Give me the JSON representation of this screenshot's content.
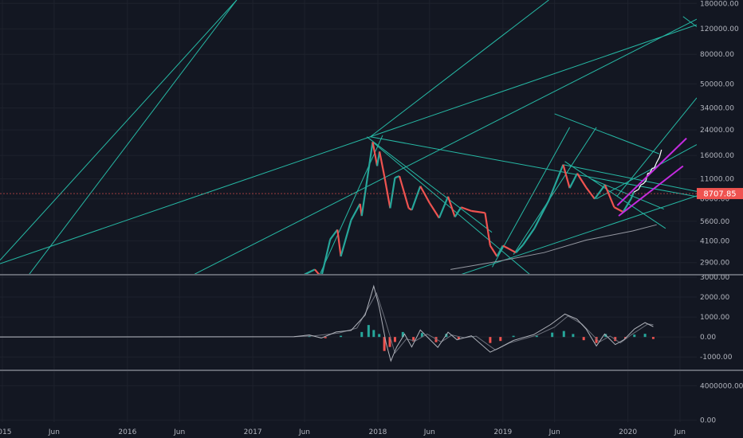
{
  "colors": {
    "background": "#131722",
    "grid": "#1e222d",
    "axis_text": "#b2b5be",
    "up": "#26a69a",
    "down": "#ef5350",
    "trendline": "#26b9a5",
    "channel": "#c42be0",
    "price_badge": "#ef5350",
    "ma_line": "#9598a1",
    "white_line": "#ffffff",
    "macd_line": "#b0b3bb",
    "signal_line": "#6b6f7a",
    "separator": "#b2b5be"
  },
  "chart_data": [
    {
      "type": "line",
      "panel": "price",
      "scale": "log",
      "ylim": [
        2420,
        190000
      ],
      "xlim": [
        "2014-12-25",
        "2020-07-20"
      ],
      "y_ticks": [
        "180000.00",
        "120000.00",
        "80000.00",
        "50000.00",
        "34000.00",
        "24000.00",
        "16000.00",
        "11000.00",
        "8000.00",
        "5600.00",
        "4100.00",
        "2900.00"
      ],
      "last_price": "8707.85",
      "x_ticks": [
        "2015",
        "Jun",
        "2016",
        "Jun",
        "2017",
        "Jun",
        "2018",
        "Jun",
        "2019",
        "Jun",
        "2020",
        "Jun"
      ],
      "price_path": [
        [
          "2017-06-01",
          2400
        ],
        [
          "2017-07-01",
          2600
        ],
        [
          "2017-07-20",
          2300
        ],
        [
          "2017-08-15",
          4200
        ],
        [
          "2017-09-05",
          4900
        ],
        [
          "2017-09-15",
          3200
        ],
        [
          "2017-10-15",
          5700
        ],
        [
          "2017-11-10",
          7400
        ],
        [
          "2017-11-15",
          6100
        ],
        [
          "2017-12-01",
          11000
        ],
        [
          "2017-12-17",
          19800
        ],
        [
          "2017-12-30",
          13500
        ],
        [
          "2018-01-06",
          17000
        ],
        [
          "2018-01-20",
          11500
        ],
        [
          "2018-02-06",
          6900
        ],
        [
          "2018-02-20",
          11200
        ],
        [
          "2018-03-05",
          11500
        ],
        [
          "2018-04-01",
          6900
        ],
        [
          "2018-04-10",
          6700
        ],
        [
          "2018-05-05",
          9800
        ],
        [
          "2018-06-01",
          7500
        ],
        [
          "2018-06-29",
          5900
        ],
        [
          "2018-07-25",
          8300
        ],
        [
          "2018-08-14",
          6000
        ],
        [
          "2018-09-01",
          7000
        ],
        [
          "2018-10-01",
          6600
        ],
        [
          "2018-11-10",
          6400
        ],
        [
          "2018-11-25",
          3800
        ],
        [
          "2018-12-15",
          3200
        ],
        [
          "2019-01-01",
          3800
        ],
        [
          "2019-02-08",
          3400
        ],
        [
          "2019-03-01",
          3850
        ],
        [
          "2019-04-03",
          5000
        ],
        [
          "2019-05-15",
          7800
        ],
        [
          "2019-06-26",
          13800
        ],
        [
          "2019-07-15",
          9500
        ],
        [
          "2019-08-06",
          12000
        ],
        [
          "2019-09-01",
          9600
        ],
        [
          "2019-09-26",
          8000
        ],
        [
          "2019-10-26",
          10000
        ],
        [
          "2019-11-22",
          7000
        ],
        [
          "2019-12-18",
          6500
        ],
        [
          "2020-01-10",
          8000
        ],
        [
          "2020-01-18",
          8900
        ]
      ],
      "white_path": [
        [
          "2020-01-18",
          8900
        ],
        [
          "2020-02-01",
          9300
        ],
        [
          "2020-02-08",
          10000
        ],
        [
          "2020-02-15",
          10200
        ],
        [
          "2020-02-22",
          10600
        ],
        [
          "2020-02-28",
          12000
        ],
        [
          "2020-03-05",
          12100
        ],
        [
          "2020-03-12",
          13000
        ],
        [
          "2020-03-18",
          13100
        ],
        [
          "2020-03-25",
          14300
        ],
        [
          "2020-04-02",
          15500
        ],
        [
          "2020-04-08",
          17500
        ]
      ],
      "ma_path": [
        [
          "2018-08-01",
          2600
        ],
        [
          "2018-12-15",
          2950
        ],
        [
          "2019-05-01",
          3400
        ],
        [
          "2019-09-01",
          4150
        ],
        [
          "2020-01-15",
          4800
        ],
        [
          "2020-03-25",
          5300
        ]
      ],
      "trendlines": [
        [
          [
            "2014-12-25",
            3010
          ],
          [
            "2016-11-15",
            190000
          ]
        ],
        [
          [
            "2014-12-25",
            1300
          ],
          [
            "2016-11-15",
            190000
          ]
        ],
        [
          [
            "2014-12-25",
            2850
          ],
          [
            "2020-07-20",
            128000
          ]
        ],
        [
          [
            "2015-03-01",
            600
          ],
          [
            "2020-07-20",
            140000
          ]
        ],
        [
          [
            "2017-12-10",
            21500
          ],
          [
            "2019-05-15",
            190000
          ]
        ],
        [
          [
            "2017-06-01",
            1400
          ],
          [
            "2018-01-15",
            22000
          ]
        ],
        [
          [
            "2017-12-10",
            21500
          ],
          [
            "2020-07-20",
            8300
          ]
        ],
        [
          [
            "2017-11-30",
            21500
          ],
          [
            "2018-11-30",
            4700
          ]
        ],
        [
          [
            "2017-12-20",
            19500
          ],
          [
            "2019-07-01",
            1500
          ]
        ],
        [
          [
            "2018-12-01",
            2700
          ],
          [
            "2019-07-15",
            25000
          ]
        ],
        [
          [
            "2019-02-01",
            3300
          ],
          [
            "2019-10-01",
            25000
          ]
        ],
        [
          [
            "2018-09-01",
            2400
          ],
          [
            "2020-07-20",
            8400
          ]
        ],
        [
          [
            "2019-06-01",
            31000
          ],
          [
            "2020-04-01",
            16400
          ]
        ],
        [
          [
            "2019-07-01",
            14500
          ],
          [
            "2020-04-20",
            5000
          ]
        ],
        [
          [
            "2019-06-26",
            13800
          ],
          [
            "2020-07-20",
            9000
          ]
        ],
        [
          [
            "2019-12-01",
            8400
          ],
          [
            "2020-07-20",
            40000
          ]
        ],
        [
          [
            "2019-10-01",
            8000
          ],
          [
            "2020-07-20",
            19000
          ]
        ],
        [
          [
            "2019-09-15",
            11000
          ],
          [
            "2020-04-15",
            6800
          ]
        ],
        [
          [
            "2020-06-10",
            146000
          ],
          [
            "2020-07-20",
            124000
          ]
        ]
      ],
      "channel": [
        [
          [
            "2019-12-01",
            7200
          ],
          [
            "2020-06-20",
            21000
          ]
        ],
        [
          [
            "2019-12-05",
            6100
          ],
          [
            "2020-06-10",
            13500
          ]
        ]
      ]
    },
    {
      "type": "line",
      "panel": "macd",
      "ylim": [
        -1630,
        3080
      ],
      "y_ticks": [
        "3000.00",
        "2000.00",
        "1000.00",
        "0.00",
        "-1000.00"
      ],
      "macd_line": [
        [
          "2014-12-25",
          0
        ],
        [
          "2017-05-01",
          15
        ],
        [
          "2017-06-15",
          100
        ],
        [
          "2017-07-20",
          -50
        ],
        [
          "2017-09-01",
          250
        ],
        [
          "2017-10-15",
          330
        ],
        [
          "2017-11-25",
          1100
        ],
        [
          "2017-12-20",
          2550
        ],
        [
          "2018-01-05",
          1500
        ],
        [
          "2018-01-25",
          -300
        ],
        [
          "2018-02-08",
          -1200
        ],
        [
          "2018-02-25",
          -500
        ],
        [
          "2018-03-20",
          150
        ],
        [
          "2018-04-10",
          -500
        ],
        [
          "2018-05-05",
          350
        ],
        [
          "2018-06-25",
          -520
        ],
        [
          "2018-07-25",
          240
        ],
        [
          "2018-08-20",
          -140
        ],
        [
          "2018-10-01",
          60
        ],
        [
          "2018-11-25",
          -760
        ],
        [
          "2018-12-20",
          -560
        ],
        [
          "2019-02-01",
          -170
        ],
        [
          "2019-04-01",
          120
        ],
        [
          "2019-05-20",
          620
        ],
        [
          "2019-07-01",
          1150
        ],
        [
          "2019-08-05",
          900
        ],
        [
          "2019-09-01",
          400
        ],
        [
          "2019-10-01",
          -450
        ],
        [
          "2019-10-25",
          150
        ],
        [
          "2019-11-25",
          -380
        ],
        [
          "2019-12-20",
          -140
        ],
        [
          "2020-01-20",
          400
        ],
        [
          "2020-02-20",
          720
        ],
        [
          "2020-03-15",
          520
        ]
      ],
      "signal_line": [
        [
          "2014-12-25",
          0
        ],
        [
          "2017-05-01",
          10
        ],
        [
          "2017-07-01",
          60
        ],
        [
          "2017-09-10",
          200
        ],
        [
          "2017-11-01",
          450
        ],
        [
          "2017-12-28",
          2200
        ],
        [
          "2018-01-20",
          1000
        ],
        [
          "2018-02-20",
          -800
        ],
        [
          "2018-03-25",
          -100
        ],
        [
          "2018-04-20",
          -200
        ],
        [
          "2018-05-25",
          150
        ],
        [
          "2018-07-05",
          -250
        ],
        [
          "2018-08-05",
          100
        ],
        [
          "2018-09-10",
          -40
        ],
        [
          "2018-10-15",
          40
        ],
        [
          "2018-12-10",
          -650
        ],
        [
          "2019-01-20",
          -300
        ],
        [
          "2019-04-10",
          90
        ],
        [
          "2019-06-01",
          500
        ],
        [
          "2019-07-10",
          1050
        ],
        [
          "2019-08-20",
          650
        ],
        [
          "2019-10-10",
          -250
        ],
        [
          "2019-11-10",
          50
        ],
        [
          "2019-12-10",
          -300
        ],
        [
          "2020-01-10",
          100
        ],
        [
          "2020-02-28",
          650
        ],
        [
          "2020-03-15",
          620
        ]
      ],
      "histogram": [
        [
          "2017-06-15",
          40
        ],
        [
          "2017-08-01",
          -60
        ],
        [
          "2017-09-15",
          60
        ],
        [
          "2017-11-15",
          250
        ],
        [
          "2017-12-05",
          600
        ],
        [
          "2017-12-20",
          350
        ],
        [
          "2018-01-05",
          150
        ],
        [
          "2018-01-20",
          -700
        ],
        [
          "2018-02-05",
          -500
        ],
        [
          "2018-02-20",
          -250
        ],
        [
          "2018-03-15",
          250
        ],
        [
          "2018-04-15",
          -220
        ],
        [
          "2018-05-10",
          200
        ],
        [
          "2018-06-20",
          -260
        ],
        [
          "2018-07-20",
          160
        ],
        [
          "2018-08-25",
          -100
        ],
        [
          "2018-10-05",
          40
        ],
        [
          "2018-11-25",
          -300
        ],
        [
          "2018-12-25",
          -200
        ],
        [
          "2019-02-01",
          60
        ],
        [
          "2019-04-10",
          60
        ],
        [
          "2019-05-25",
          220
        ],
        [
          "2019-06-28",
          300
        ],
        [
          "2019-07-25",
          150
        ],
        [
          "2019-08-25",
          -160
        ],
        [
          "2019-10-01",
          -300
        ],
        [
          "2019-10-28",
          150
        ],
        [
          "2019-11-25",
          -200
        ],
        [
          "2019-12-25",
          -80
        ],
        [
          "2020-01-20",
          120
        ],
        [
          "2020-02-20",
          160
        ],
        [
          "2020-03-15",
          -100
        ]
      ]
    },
    {
      "type": "bar",
      "panel": "volume",
      "ylim": [
        -400000,
        5700000
      ],
      "y_ticks": [
        "4000000.00",
        "0.00"
      ]
    }
  ]
}
